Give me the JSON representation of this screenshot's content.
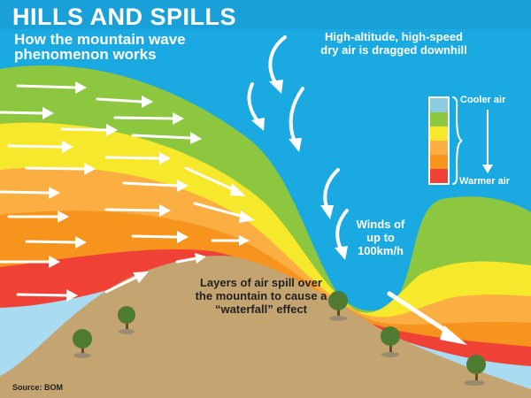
{
  "title": "HILLS AND SPILLS",
  "subtitle": "How the mountain wave phenomenon works",
  "annotations": {
    "sky_note": "High-altitude, high-speed dry air is dragged downhill",
    "winds": "Winds of up to 100km/h",
    "layers": "Layers of air spill over the mountain to cause a “waterfall” effect"
  },
  "legend": {
    "top_label": "Cooler air",
    "bottom_label": "Warmer air",
    "colors": [
      "#8ccbe0",
      "#8dc63f",
      "#f6e82b",
      "#fbae42",
      "#f7941d",
      "#ef4136"
    ]
  },
  "source": "Source: BOM",
  "colors": {
    "sky": "#1ba9e1",
    "green": "#8dc63f",
    "yellow": "#f6e82b",
    "light_orange": "#fbae42",
    "orange": "#f7941d",
    "red": "#ef4136",
    "light_blue": "#a9dcf0",
    "ground": "#c4a572"
  }
}
